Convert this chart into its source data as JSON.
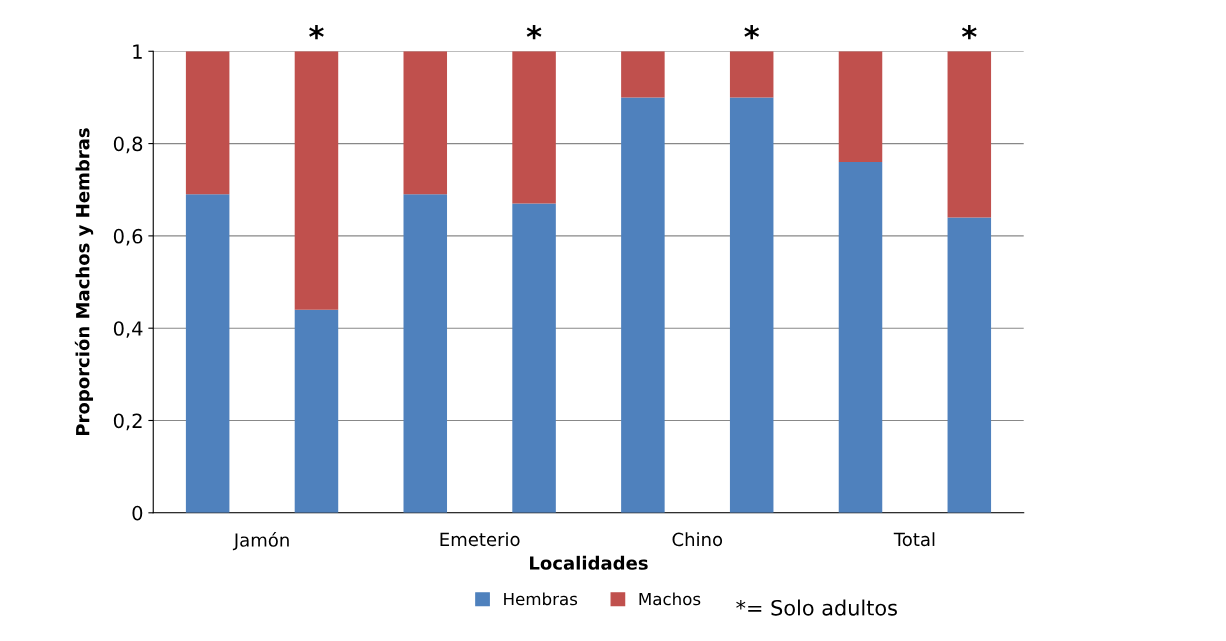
{
  "chart_data": {
    "type": "bar",
    "stacked": true,
    "xlabel": "Localidades",
    "ylabel": "Proporción Machos y Hembras",
    "categories": [
      "Jamón",
      null,
      "Emeterio",
      null,
      "Chino",
      null,
      "Total",
      null
    ],
    "series": [
      {
        "name": "Hembras",
        "color": "#4f81bd",
        "values": [
          0.69,
          0.44,
          0.69,
          0.67,
          0.9,
          0.9,
          0.76,
          0.64
        ]
      },
      {
        "name": "Machos",
        "color": "#c0504d",
        "values": [
          0.31,
          0.56,
          0.31,
          0.33,
          0.1,
          0.1,
          0.24,
          0.36
        ],
        "value_labels": [
          null,
          "*",
          null,
          "*",
          null,
          "*",
          null,
          "*"
        ]
      }
    ],
    "ylim": [
      0,
      1
    ],
    "yticks": [
      0,
      {
        "value": 0.2,
        "label": "0,2"
      },
      {
        "value": 0.4,
        "label": "0,4"
      },
      {
        "value": 0.6,
        "label": "0,6"
      },
      {
        "value": 0.8,
        "label": "0,8"
      },
      1
    ],
    "grid": "y",
    "legend": "bottom",
    "annotations": [
      "*= Solo adultos"
    ]
  }
}
